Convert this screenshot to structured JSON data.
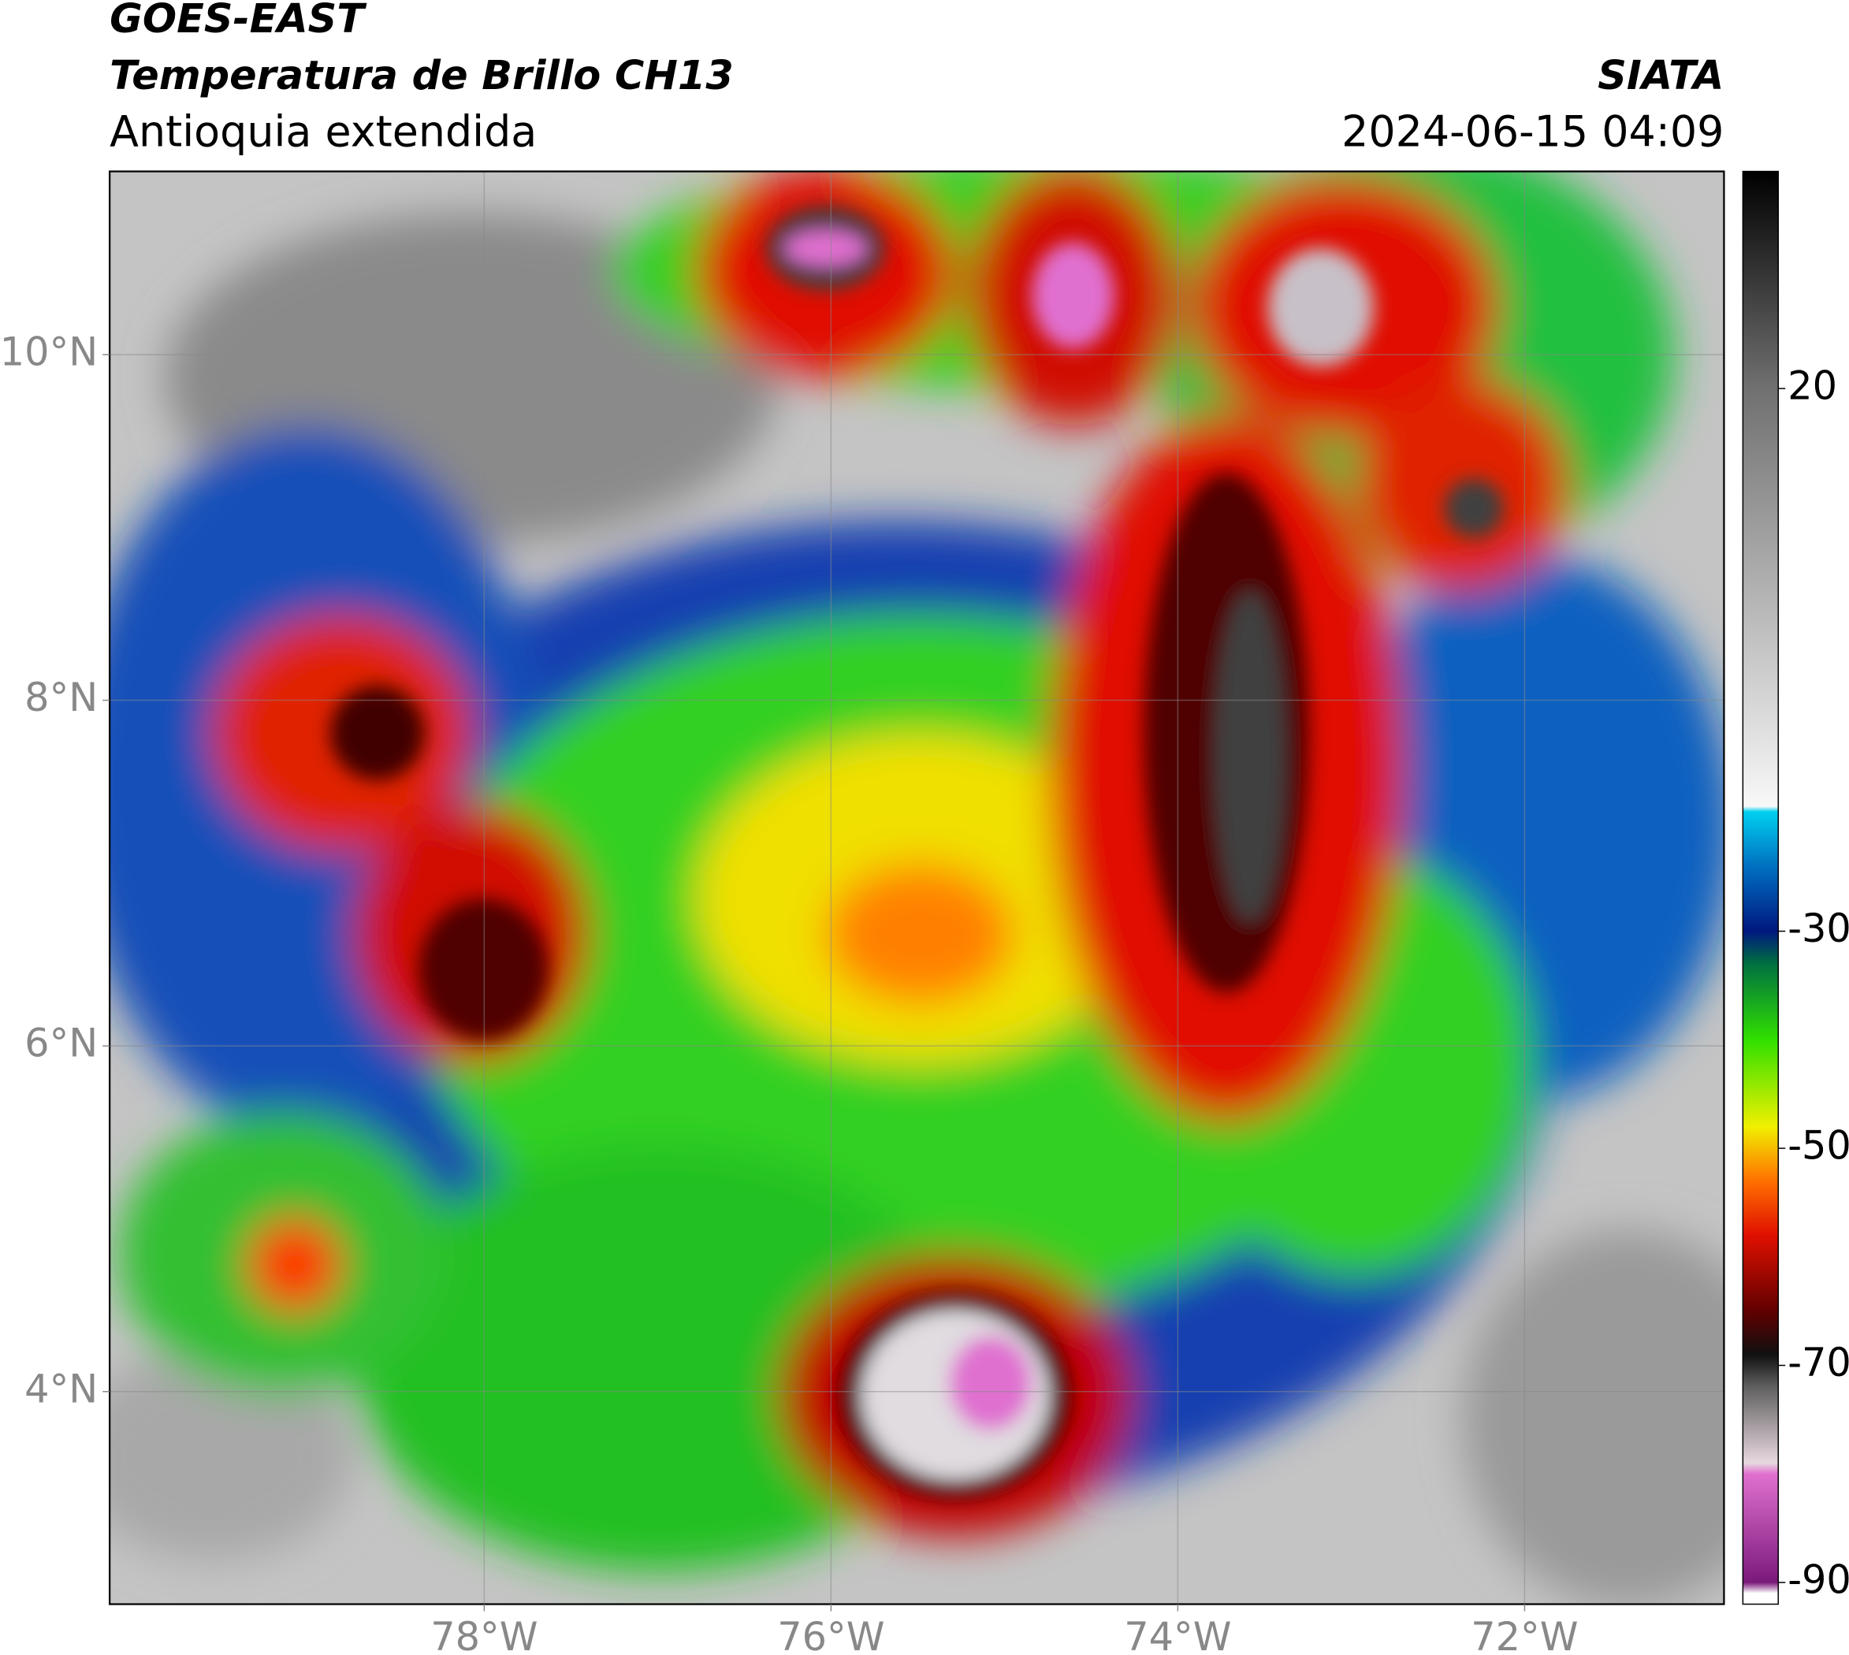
{
  "header": {
    "satellite": "GOES-EAST",
    "product": "Temperatura de Brillo CH13",
    "region": "Antioquia extendida",
    "source": "SIATA",
    "datetime": "2024-06-15 04:09"
  },
  "map": {
    "xlim": [
      -80.16,
      -70.85
    ],
    "ylim": [
      2.77,
      11.06
    ],
    "xticks": [
      {
        "value": -78,
        "label": "78°W"
      },
      {
        "value": -76,
        "label": "76°W"
      },
      {
        "value": -74,
        "label": "74°W"
      },
      {
        "value": -72,
        "label": "72°W"
      }
    ],
    "yticks": [
      {
        "value": 4,
        "label": "4°N"
      },
      {
        "value": 6,
        "label": "6°N"
      },
      {
        "value": 8,
        "label": "8°N"
      },
      {
        "value": 10,
        "label": "10°N"
      }
    ],
    "grid": true
  },
  "colorbar": {
    "clim": [
      -92,
      40
    ],
    "ticks": [
      20,
      -30,
      -50,
      -70,
      -90
    ],
    "colormap": [
      {
        "value": -92,
        "color": "#ffffff"
      },
      {
        "value": -91,
        "color": "#ffffff"
      },
      {
        "value": -90,
        "color": "#7a1a7a"
      },
      {
        "value": -80,
        "color": "#e070d0"
      },
      {
        "value": -79,
        "color": "#e8d8e0"
      },
      {
        "value": -72,
        "color": "#606060"
      },
      {
        "value": -69,
        "color": "#101010"
      },
      {
        "value": -65,
        "color": "#600000"
      },
      {
        "value": -58,
        "color": "#e01000"
      },
      {
        "value": -53,
        "color": "#ff7000"
      },
      {
        "value": -48,
        "color": "#f0f000"
      },
      {
        "value": -40,
        "color": "#30e000"
      },
      {
        "value": -33,
        "color": "#007040"
      },
      {
        "value": -30,
        "color": "#001880"
      },
      {
        "value": -24,
        "color": "#0070c0"
      },
      {
        "value": -19,
        "color": "#00d0f0"
      },
      {
        "value": -18.5,
        "color": "#f8f8f8"
      },
      {
        "value": 20,
        "color": "#707070"
      },
      {
        "value": 40,
        "color": "#000000"
      }
    ]
  }
}
